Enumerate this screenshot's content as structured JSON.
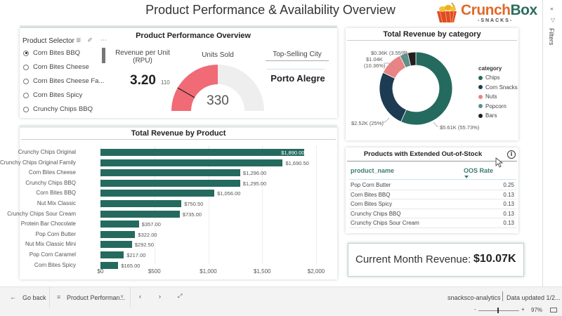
{
  "header": {
    "title": "Product Performance & Availability Overview",
    "logo_brand_a": "Crunch",
    "logo_brand_b": "Box",
    "logo_sub": "-SNACKS-"
  },
  "slicer": {
    "title": "Product Selector",
    "items": [
      {
        "label": "Corn Bites BBQ",
        "selected": true
      },
      {
        "label": "Corn Bites Cheese",
        "selected": false
      },
      {
        "label": "Corn Bites Cheese Fa...",
        "selected": false
      },
      {
        "label": "Corn Bites Spicy",
        "selected": false
      },
      {
        "label": "Crunchy Chips BBQ",
        "selected": false
      }
    ]
  },
  "overview": {
    "title": "Product Performance Overview",
    "rpu_label_1": "Revenue per Unit",
    "rpu_label_2": "(RPU)",
    "rpu_value": "3.20",
    "gauge": {
      "label": "Units Sold",
      "value": 330,
      "value_text": "330",
      "target": 110,
      "target_text": "110",
      "max": 660,
      "fill_color": "#f06b76"
    },
    "city_label": "Top-Selling City",
    "city_value": "Porto Alegre"
  },
  "category_chart": {
    "title": "Total Revenue by category",
    "legend_title": "category",
    "labels": {
      "bars": "$0.36K (3.55%)",
      "nuts_1": "$1.04K",
      "nuts_2": "(10.36%)",
      "corn": "$2.52K (25%)",
      "chips": "$5.61K (55.73%)"
    }
  },
  "product_chart": {
    "title": "Total Revenue by Product"
  },
  "oos_table": {
    "title": "Products with Extended Out-of-Stock",
    "col1": "product_name",
    "col2": "OOS Rate",
    "rows": [
      {
        "name": "Pop Corn Butter",
        "rate": "0.25"
      },
      {
        "name": "Corn Bites BBQ",
        "rate": "0.13"
      },
      {
        "name": "Corn Bites Spicy",
        "rate": "0.13"
      },
      {
        "name": "Crunchy Chips BBQ",
        "rate": "0.13"
      },
      {
        "name": "Crunchy Chips Sour Cream",
        "rate": "0.13"
      }
    ]
  },
  "kpi": {
    "label": "Current Month Revenue:",
    "value": "$10.07K"
  },
  "filters_pane": {
    "label": "Filters"
  },
  "footer": {
    "go_back": "Go back",
    "page_name": "Product Performan...",
    "workspace": "snacksco-analytics",
    "updated": "Data updated 1/2...",
    "zoom": "97%",
    "zoom_minus": "-",
    "zoom_plus": "+"
  },
  "chart_data": [
    {
      "type": "bar",
      "title": "Total Revenue by Product",
      "orientation": "horizontal",
      "categories": [
        "Crunchy Chips Original",
        "Crunchy Chips Original Family",
        "Corn Bites Cheese",
        "Crunchy Chips BBQ",
        "Corn Bites BBQ",
        "Nut Mix Classic",
        "Crunchy Chips Sour Cream",
        "Protein Bar Chocolate",
        "Pop Corn Butter",
        "Nut Mix Classic Mini",
        "Pop Corn Caramel",
        "Corn Bites Spicy"
      ],
      "values": [
        1890.0,
        1690.5,
        1296.0,
        1295.0,
        1056.0,
        750.5,
        735.0,
        357.0,
        322.0,
        292.5,
        217.0,
        165.0
      ],
      "data_labels": [
        "$1,890.00",
        "$1,690.50",
        "$1,296.00",
        "$1,295.00",
        "$1,056.00",
        "$750.50",
        "$735.00",
        "$357.00",
        "$322.00",
        "$292.50",
        "$217.00",
        "$165.00"
      ],
      "xlim": [
        0,
        2000
      ],
      "xticks": [
        "$0",
        "$500",
        "$1,000",
        "$1,500",
        "$2,000"
      ],
      "xtick_values": [
        0,
        500,
        1000,
        1500,
        2000
      ],
      "color": "#256a5e",
      "grid": true
    },
    {
      "type": "pie",
      "variant": "donut",
      "title": "Total Revenue by category",
      "legend_title": "category",
      "legend_position": "right",
      "categories": [
        "Chips",
        "Corn Snacks",
        "Nuts",
        "Popcorn",
        "Bars"
      ],
      "values": [
        5.61,
        2.52,
        1.04,
        0.36,
        0.36
      ],
      "percents": [
        55.73,
        25.0,
        10.36,
        3.55,
        3.55
      ],
      "colors": [
        "#256a5e",
        "#1d3b52",
        "#e98384",
        "#5f8f88",
        "#1f1f1f"
      ],
      "unit": "$K"
    }
  ]
}
